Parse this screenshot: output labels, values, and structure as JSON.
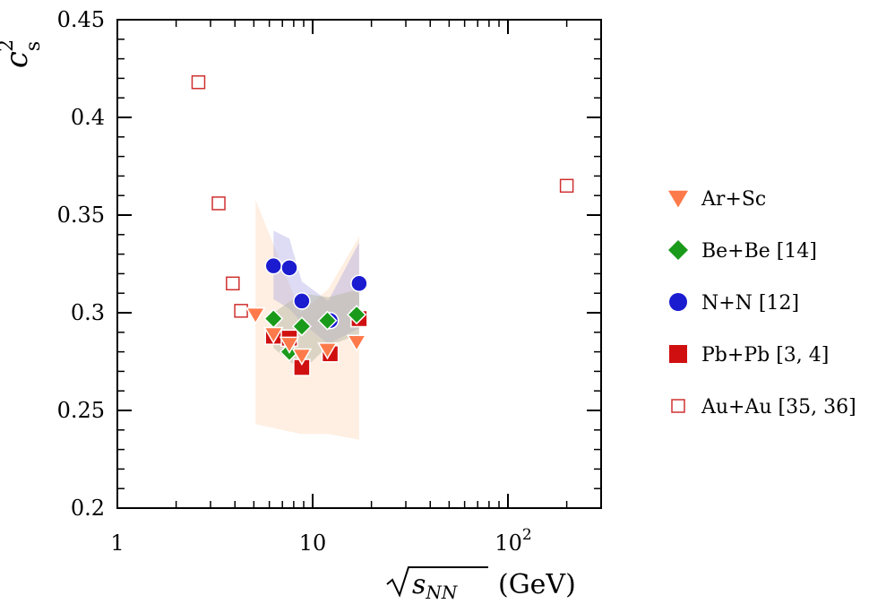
{
  "chart_data": {
    "type": "scatter",
    "title": "",
    "xlabel": "(GeV)",
    "xlabel_math": "s",
    "xlabel_sub": "NN",
    "ylabel": "c",
    "ylabel_sup": "2",
    "ylabel_sub": "s",
    "xscale": "log",
    "xlim": [
      1,
      300
    ],
    "ylim": [
      0.2,
      0.45
    ],
    "x_ticks": [
      {
        "value": 1,
        "label": "1"
      },
      {
        "value": 10,
        "label": "10"
      },
      {
        "value": 100,
        "label": "10",
        "sup": "2"
      }
    ],
    "y_ticks": [
      {
        "value": 0.2,
        "label": "0.2"
      },
      {
        "value": 0.25,
        "label": "0.25"
      },
      {
        "value": 0.3,
        "label": "0.3"
      },
      {
        "value": 0.35,
        "label": "0.35"
      },
      {
        "value": 0.4,
        "label": "0.4"
      },
      {
        "value": 0.45,
        "label": "0.45"
      }
    ],
    "grid": false,
    "legend_position": "right",
    "bands": [
      {
        "color": "#fde4cf",
        "opacity": 0.6,
        "upper": [
          [
            5.1,
            0.358
          ],
          [
            8.7,
            0.3
          ],
          [
            12.0,
            0.312
          ],
          [
            17.3,
            0.339
          ]
        ],
        "lower": [
          [
            17.3,
            0.235
          ],
          [
            12.0,
            0.238
          ],
          [
            8.7,
            0.238
          ],
          [
            5.1,
            0.243
          ]
        ]
      },
      {
        "color": "#9d9be0",
        "opacity": 0.35,
        "upper": [
          [
            6.3,
            0.342
          ],
          [
            7.6,
            0.338
          ],
          [
            8.8,
            0.316
          ],
          [
            12.0,
            0.306
          ],
          [
            17.3,
            0.336
          ]
        ],
        "lower": [
          [
            17.3,
            0.292
          ],
          [
            12.0,
            0.284
          ],
          [
            8.8,
            0.295
          ],
          [
            7.6,
            0.302
          ],
          [
            6.3,
            0.307
          ]
        ]
      },
      {
        "color": "#b7b9a6",
        "opacity": 0.5,
        "upper": [
          [
            6.3,
            0.3
          ],
          [
            8.8,
            0.31
          ],
          [
            12.0,
            0.308
          ],
          [
            17.3,
            0.312
          ]
        ],
        "lower": [
          [
            17.3,
            0.289
          ],
          [
            12.0,
            0.283
          ],
          [
            8.8,
            0.27
          ],
          [
            6.3,
            0.282
          ]
        ]
      }
    ],
    "series": [
      {
        "name": "Ar+Sc",
        "marker": "triangle-down",
        "fill": "#ff7a4a",
        "stroke": "#ffffff",
        "points": [
          [
            5.1,
            0.299
          ],
          [
            6.3,
            0.289
          ],
          [
            7.6,
            0.284
          ],
          [
            8.8,
            0.278
          ],
          [
            11.9,
            0.281
          ],
          [
            16.8,
            0.285
          ]
        ]
      },
      {
        "name": "Be+Be [14]",
        "marker": "diamond",
        "fill": "#1a9a1a",
        "stroke": "#ffffff",
        "points": [
          [
            6.3,
            0.297
          ],
          [
            7.6,
            0.28
          ],
          [
            8.8,
            0.293
          ],
          [
            11.9,
            0.296
          ],
          [
            16.8,
            0.299
          ]
        ]
      },
      {
        "name": "N+N [12]",
        "marker": "circle",
        "fill": "#1b1bd0",
        "stroke": "#ffffff",
        "points": [
          [
            6.3,
            0.324
          ],
          [
            7.6,
            0.323
          ],
          [
            8.8,
            0.306
          ],
          [
            12.3,
            0.296
          ],
          [
            17.3,
            0.315
          ]
        ]
      },
      {
        "name": "Pb+Pb [3, 4]",
        "marker": "square",
        "fill": "#d01010",
        "stroke": "#ffffff",
        "points": [
          [
            6.3,
            0.288
          ],
          [
            7.6,
            0.287
          ],
          [
            8.8,
            0.272
          ],
          [
            12.3,
            0.279
          ],
          [
            17.3,
            0.297
          ]
        ]
      },
      {
        "name": "Au+Au [35, 36]",
        "marker": "square-open",
        "fill": "none",
        "stroke": "#d03030",
        "points": [
          [
            2.6,
            0.418
          ],
          [
            3.3,
            0.356
          ],
          [
            3.9,
            0.315
          ],
          [
            4.3,
            0.301
          ],
          [
            200,
            0.365
          ]
        ]
      }
    ]
  }
}
